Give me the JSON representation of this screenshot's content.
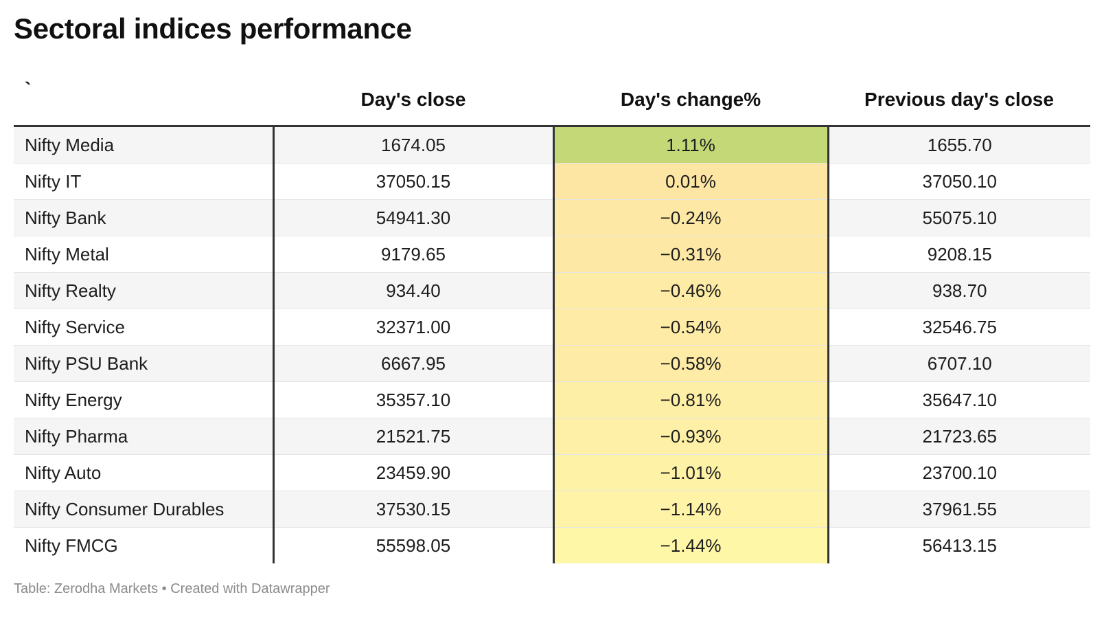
{
  "title": "Sectoral indices performance",
  "chart_data": {
    "type": "table",
    "columns": [
      "`",
      "Day's close",
      "Day's change%",
      "Previous day's close"
    ],
    "rows": [
      {
        "name": "Nifty Media",
        "close": "1674.05",
        "change": "1.11%",
        "change_value": 1.11,
        "prev": "1655.70"
      },
      {
        "name": "Nifty IT",
        "close": "37050.15",
        "change": "0.01%",
        "change_value": 0.01,
        "prev": "37050.10"
      },
      {
        "name": "Nifty Bank",
        "close": "54941.30",
        "change": "−0.24%",
        "change_value": -0.24,
        "prev": "55075.10"
      },
      {
        "name": "Nifty Metal",
        "close": "9179.65",
        "change": "−0.31%",
        "change_value": -0.31,
        "prev": "9208.15"
      },
      {
        "name": "Nifty Realty",
        "close": "934.40",
        "change": "−0.46%",
        "change_value": -0.46,
        "prev": "938.70"
      },
      {
        "name": "Nifty Service",
        "close": "32371.00",
        "change": "−0.54%",
        "change_value": -0.54,
        "prev": "32546.75"
      },
      {
        "name": "Nifty PSU Bank",
        "close": "6667.95",
        "change": "−0.58%",
        "change_value": -0.58,
        "prev": "6707.10"
      },
      {
        "name": "Nifty Energy",
        "close": "35357.10",
        "change": "−0.81%",
        "change_value": -0.81,
        "prev": "35647.10"
      },
      {
        "name": "Nifty Pharma",
        "close": "21521.75",
        "change": "−0.93%",
        "change_value": -0.93,
        "prev": "21723.65"
      },
      {
        "name": "Nifty Auto",
        "close": "23459.90",
        "change": "−1.01%",
        "change_value": -1.01,
        "prev": "23700.10"
      },
      {
        "name": "Nifty Consumer Durables",
        "close": "37530.15",
        "change": "−1.14%",
        "change_value": -1.14,
        "prev": "37961.55"
      },
      {
        "name": "Nifty FMCG",
        "close": "55598.05",
        "change": "−1.44%",
        "change_value": -1.44,
        "prev": "56413.15"
      }
    ],
    "heatmap_colors": {
      "high": "#c4d877",
      "mid": "#fde5a4",
      "low": "#fff7a8"
    }
  },
  "footer": "Table: Zerodha Markets • Created with Datawrapper"
}
